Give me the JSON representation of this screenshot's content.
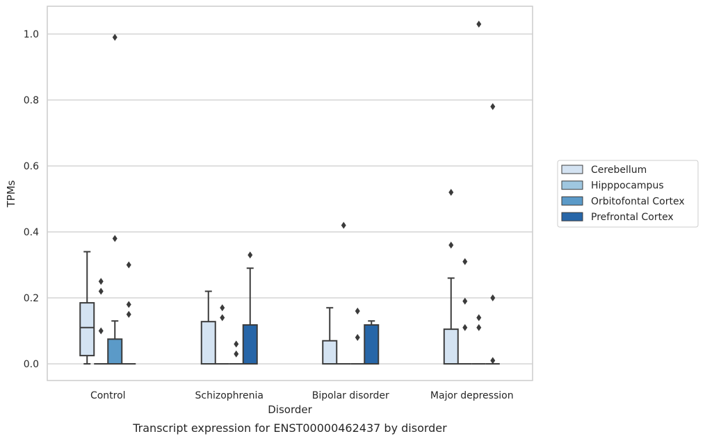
{
  "chart_data": {
    "type": "box",
    "title": "Transcript expression for ENST00000462437 by disorder",
    "xlabel": "Disorder",
    "ylabel": "TPMs",
    "ylim": [
      -0.05,
      1.08
    ],
    "yticks": [
      0.0,
      0.2,
      0.4,
      0.6,
      0.8,
      1.0
    ],
    "ytick_labels": [
      "0.0",
      "0.2",
      "0.4",
      "0.6",
      "0.8",
      "1.0"
    ],
    "grid": "horizontal",
    "legend_position": "right",
    "categories": [
      "Control",
      "Schizophrenia",
      "Bipolar disorder",
      "Major depression"
    ],
    "series": [
      {
        "name": "Cerebellum",
        "color": "#d4e3f2",
        "boxes": [
          {
            "q1": 0.025,
            "median": 0.11,
            "q3": 0.185,
            "whisker_low": 0.0,
            "whisker_high": 0.34,
            "outliers": []
          },
          {
            "q1": 0.0,
            "median": 0.0,
            "q3": 0.128,
            "whisker_low": 0.0,
            "whisker_high": 0.22,
            "outliers": []
          },
          {
            "q1": 0.0,
            "median": 0.0,
            "q3": 0.07,
            "whisker_low": 0.0,
            "whisker_high": 0.17,
            "outliers": []
          },
          {
            "q1": 0.0,
            "median": 0.0,
            "q3": 0.105,
            "whisker_low": 0.0,
            "whisker_high": 0.26,
            "outliers": [
              0.52,
              0.36
            ]
          }
        ]
      },
      {
        "name": "Hipppocampus",
        "color": "#9fc7e0",
        "boxes": [
          {
            "q1": 0.0,
            "median": 0.0,
            "q3": 0.0,
            "whisker_low": 0.0,
            "whisker_high": 0.0,
            "outliers": [
              0.25,
              0.22,
              0.1
            ]
          },
          {
            "q1": 0.0,
            "median": 0.0,
            "q3": 0.0,
            "whisker_low": 0.0,
            "whisker_high": 0.0,
            "outliers": [
              0.17,
              0.14
            ]
          },
          {
            "q1": 0.0,
            "median": 0.0,
            "q3": 0.0,
            "whisker_low": 0.0,
            "whisker_high": 0.0,
            "outliers": [
              0.42
            ]
          },
          {
            "q1": 0.0,
            "median": 0.0,
            "q3": 0.0,
            "whisker_low": 0.0,
            "whisker_high": 0.0,
            "outliers": [
              0.31,
              0.19,
              0.11
            ]
          }
        ]
      },
      {
        "name": "Orbitofontal Cortex",
        "color": "#5b9ac8",
        "boxes": [
          {
            "q1": 0.0,
            "median": 0.0,
            "q3": 0.075,
            "whisker_low": 0.0,
            "whisker_high": 0.13,
            "outliers": [
              0.99,
              0.38
            ]
          },
          {
            "q1": 0.0,
            "median": 0.0,
            "q3": 0.0,
            "whisker_low": 0.0,
            "whisker_high": 0.0,
            "outliers": [
              0.06,
              0.03
            ]
          },
          {
            "q1": 0.0,
            "median": 0.0,
            "q3": 0.0,
            "whisker_low": 0.0,
            "whisker_high": 0.0,
            "outliers": [
              0.16,
              0.08
            ]
          },
          {
            "q1": 0.0,
            "median": 0.0,
            "q3": 0.0,
            "whisker_low": 0.0,
            "whisker_high": 0.0,
            "outliers": [
              1.03,
              0.14,
              0.11
            ]
          }
        ]
      },
      {
        "name": "Prefrontal Cortex",
        "color": "#2766a8",
        "boxes": [
          {
            "q1": 0.0,
            "median": 0.0,
            "q3": 0.0,
            "whisker_low": 0.0,
            "whisker_high": 0.0,
            "outliers": [
              0.3,
              0.18,
              0.15
            ]
          },
          {
            "q1": 0.0,
            "median": 0.0,
            "q3": 0.118,
            "whisker_low": 0.0,
            "whisker_high": 0.29,
            "outliers": [
              0.33
            ]
          },
          {
            "q1": 0.0,
            "median": 0.0,
            "q3": 0.118,
            "whisker_low": 0.0,
            "whisker_high": 0.13,
            "outliers": []
          },
          {
            "q1": 0.0,
            "median": 0.0,
            "q3": 0.0,
            "whisker_low": 0.0,
            "whisker_high": 0.0,
            "outliers": [
              0.78,
              0.2,
              0.01
            ]
          }
        ]
      }
    ]
  }
}
